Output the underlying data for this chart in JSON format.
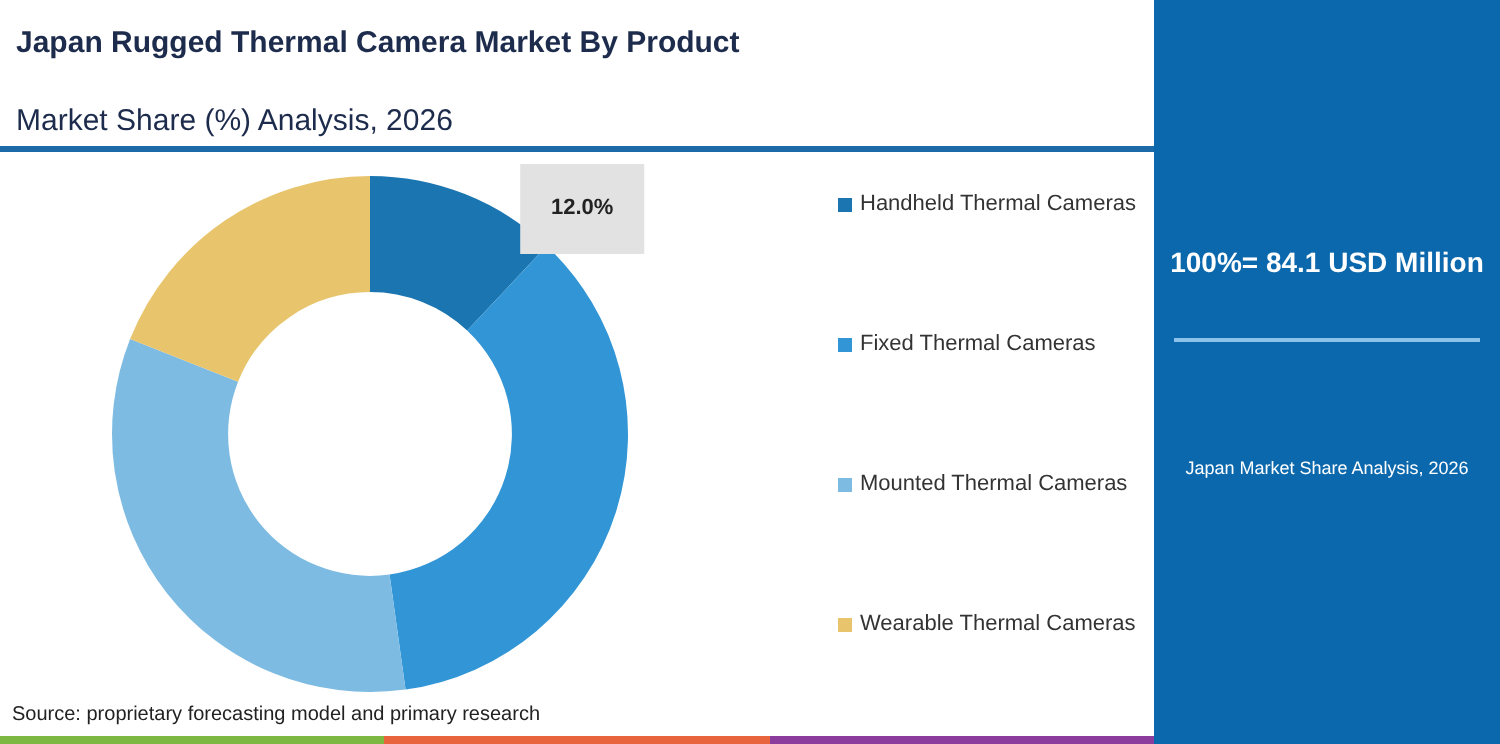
{
  "chart_data": {
    "type": "donut",
    "title": "Japan Rugged Thermal Camera Market By Product",
    "subtitle": "Market Share (%) Analysis, 2026",
    "categories": [
      "Handheld Thermal Cameras",
      "Fixed Thermal Cameras",
      "Mounted Thermal Cameras",
      "Wearable Thermal Cameras"
    ],
    "values": [
      12.0,
      35.8,
      33.2,
      19.0
    ],
    "colors": [
      "#1b75b0",
      "#3195d6",
      "#7dbbe2",
      "#e8c46c"
    ],
    "value_labels": [
      "12.0%",
      null,
      null,
      null
    ],
    "legend": "right",
    "annotations": [
      "100%= 84.1 USD Million",
      "Japan Market Share Analysis, 2026",
      "Source: proprietary forecasting model and primary research"
    ]
  }
}
